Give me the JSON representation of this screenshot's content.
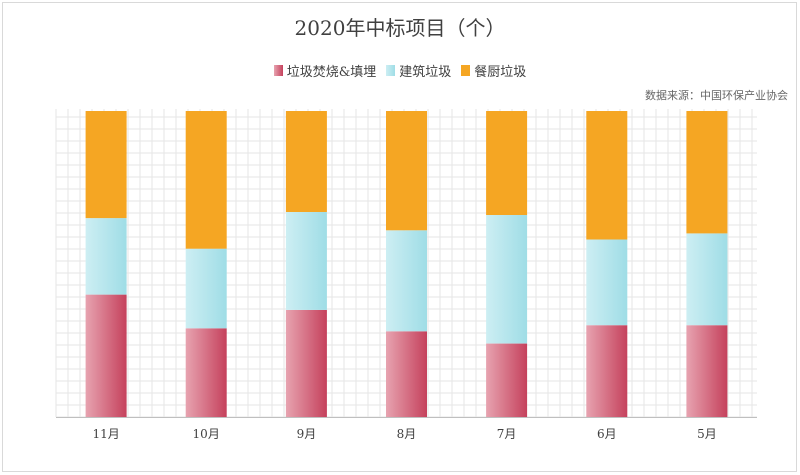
{
  "colors": {
    "series": [
      "#c5415c",
      "#9fdde6",
      "#f5a623"
    ],
    "series_light": [
      "#e7a3b0",
      "#cdeef3",
      "#f5a623"
    ],
    "grid": "#e6e6e6",
    "axis": "#bfbfbf"
  },
  "chart_data": {
    "type": "bar",
    "stacked": true,
    "title": "2020年中标项目（个）",
    "source": "数据来源：中国环保产业协会",
    "categories": [
      "11月",
      "10月",
      "9月",
      "8月",
      "7月",
      "6月",
      "5月"
    ],
    "series": [
      {
        "name": "垃圾焚烧&填埋",
        "values": [
          40,
          29,
          35,
          28,
          24,
          30,
          30
        ]
      },
      {
        "name": "建筑垃圾",
        "values": [
          25,
          26,
          32,
          33,
          42,
          28,
          30
        ]
      },
      {
        "name": "餐厨垃圾",
        "values": [
          35,
          45,
          33,
          39,
          34,
          42,
          40
        ]
      }
    ],
    "ylim": [
      0,
      100
    ],
    "legend_position": "top",
    "grid": true
  }
}
